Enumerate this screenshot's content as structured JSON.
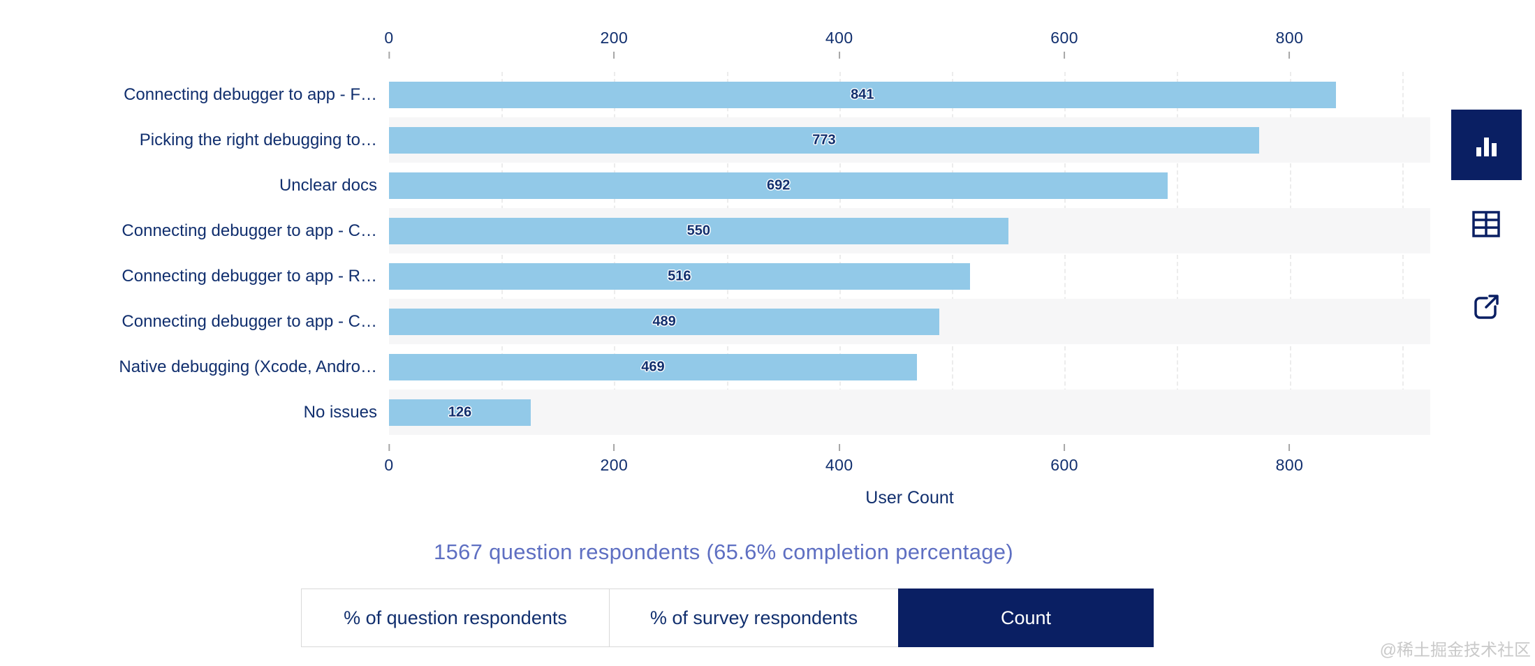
{
  "chart_data": {
    "type": "bar",
    "orientation": "horizontal",
    "categories": [
      "Connecting debugger to app - F…",
      "Picking the right debugging to…",
      "Unclear docs",
      "Connecting debugger to app - C…",
      "Connecting debugger to app - R…",
      "Connecting debugger to app - C…",
      "Native debugging (Xcode, Andro…",
      "No issues"
    ],
    "values": [
      841,
      773,
      692,
      550,
      516,
      489,
      469,
      126
    ],
    "xlabel": "User Count",
    "x_ticks": [
      0,
      200,
      400,
      600,
      800
    ],
    "xlim": [
      0,
      925
    ],
    "grid": "vertical dashed minor lines every 100",
    "legend_position": "none",
    "value_labels": "centered inside bars"
  },
  "subtitle": "1567 question respondents (65.6% completion percentage)",
  "toggles": {
    "options": [
      {
        "label": "% of question respondents",
        "active": false
      },
      {
        "label": "% of survey respondents",
        "active": false
      },
      {
        "label": "Count",
        "active": true
      }
    ]
  },
  "side_toolbar": {
    "icons": [
      "bar-chart-icon",
      "table-icon",
      "external-link-icon"
    ],
    "selected": "bar-chart-icon"
  },
  "watermark": "@稀土掘金技术社区",
  "colors": {
    "bar": "#92c9e8",
    "row_stripe": "#f6f6f7",
    "text_navy": "#112f6e",
    "deep_navy": "#0a1f63",
    "subtitle": "#5e6fc2",
    "gridline": "#ececec",
    "tick_mark": "#a6a6a6",
    "button_border": "#d9d9d9",
    "watermark": "#c9c9c9"
  }
}
